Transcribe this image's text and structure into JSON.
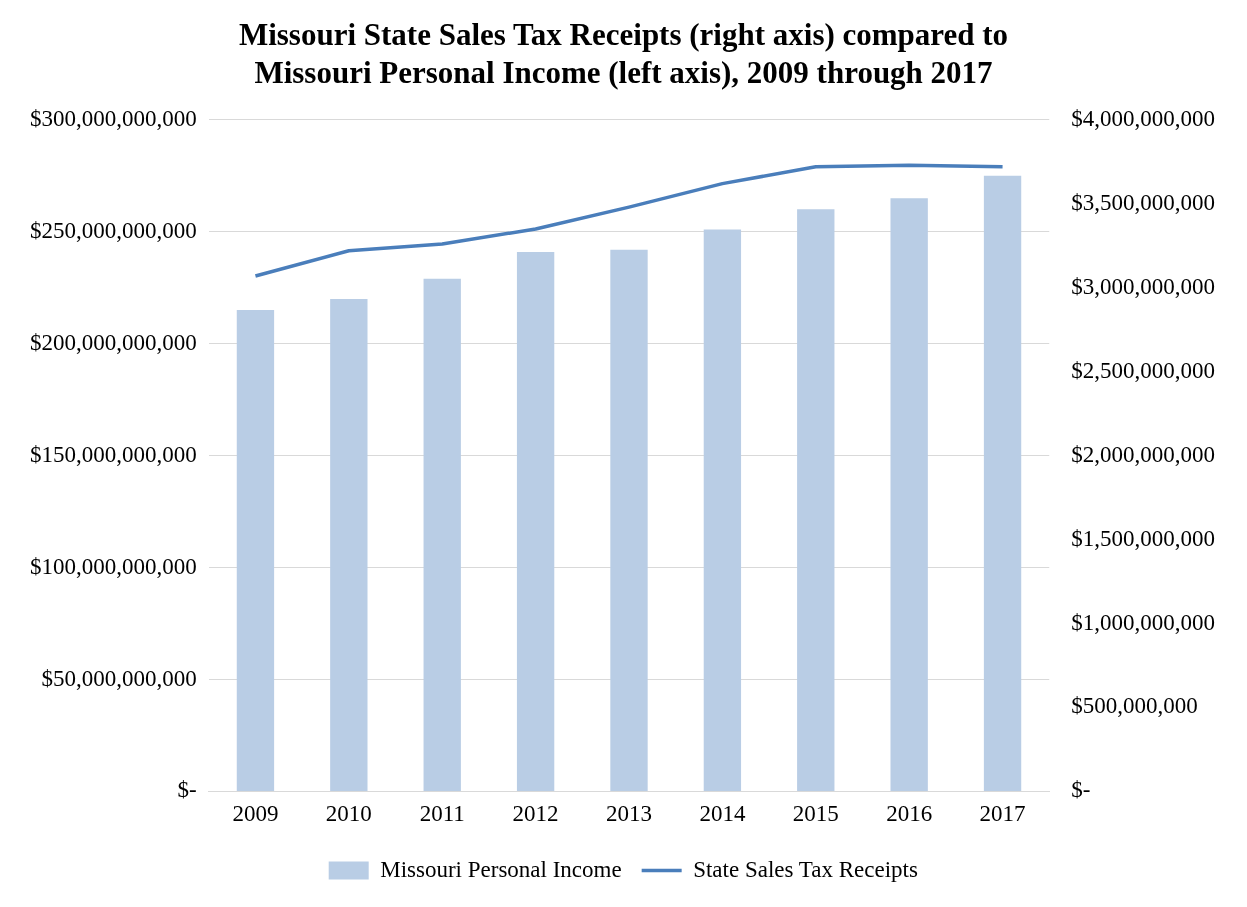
{
  "chart_data": {
    "type": "bar",
    "title": "Missouri State Sales Tax Receipts (right axis) compared to Missouri Personal Income (left axis), 2009 through 2017",
    "categories": [
      "2009",
      "2010",
      "2011",
      "2012",
      "2013",
      "2014",
      "2015",
      "2016",
      "2017"
    ],
    "series": [
      {
        "name": "Missouri Personal Income",
        "color": "#b9cde5",
        "values": [
          215000000000,
          220000000000,
          229000000000,
          241000000000,
          242000000000,
          251000000000,
          260000000000,
          265000000000,
          275000000000
        ]
      },
      {
        "name": "State Sales Tax Receipts",
        "type": "line",
        "axis": "y2",
        "color": "#4a7ebb",
        "values": [
          3070000000,
          3220000000,
          3260000000,
          3350000000,
          3480000000,
          3620000000,
          3720000000,
          3730000000,
          3720000000
        ]
      }
    ],
    "ylim": [
      0,
      300000000000
    ],
    "yticks": [
      {
        "value": 0,
        "label": "$-"
      },
      {
        "value": 50000000000,
        "label": "$50,000,000,000"
      },
      {
        "value": 100000000000,
        "label": "$100,000,000,000"
      },
      {
        "value": 150000000000,
        "label": "$150,000,000,000"
      },
      {
        "value": 200000000000,
        "label": "$200,000,000,000"
      },
      {
        "value": 250000000000,
        "label": "$250,000,000,000"
      },
      {
        "value": 300000000000,
        "label": "$300,000,000,000"
      }
    ],
    "y2lim": [
      0,
      4000000000
    ],
    "y2ticks": [
      {
        "value": 0,
        "label": "$-"
      },
      {
        "value": 500000000,
        "label": "$500,000,000"
      },
      {
        "value": 1000000000,
        "label": "$1,000,000,000"
      },
      {
        "value": 1500000000,
        "label": "$1,500,000,000"
      },
      {
        "value": 2000000000,
        "label": "$2,000,000,000"
      },
      {
        "value": 2500000000,
        "label": "$2,500,000,000"
      },
      {
        "value": 3000000000,
        "label": "$3,000,000,000"
      },
      {
        "value": 3500000000,
        "label": "$3,500,000,000"
      },
      {
        "value": 4000000000,
        "label": "$4,000,000,000"
      }
    ],
    "grid": "y",
    "legend": "bottom",
    "marker": "none"
  }
}
